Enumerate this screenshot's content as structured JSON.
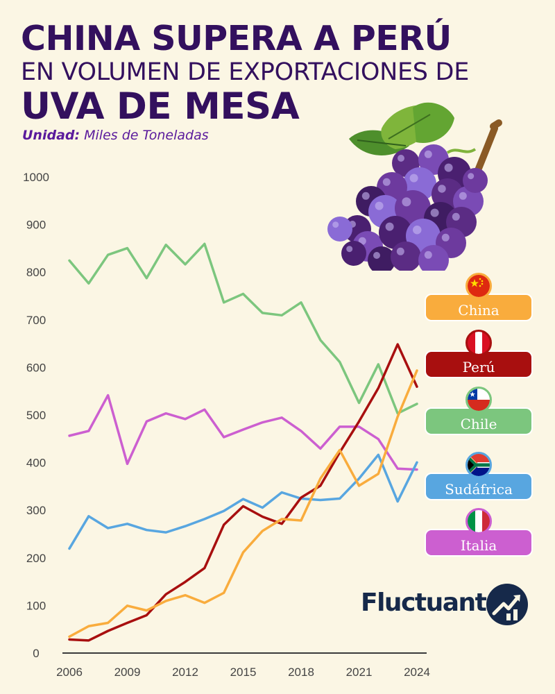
{
  "title": {
    "line1": "CHINA SUPERA A PERÚ",
    "line2": "EN VOLUMEN DE EXPORTACIONES DE",
    "line3": "UVA DE MESA"
  },
  "unit": {
    "label": "Unidad:",
    "value": " Miles de Toneladas"
  },
  "brand": {
    "name": "Fluctuante",
    "logo_icon": "chart-arrow-icon"
  },
  "decoration": {
    "icon": "grapes-icon"
  },
  "chart_data": {
    "type": "line",
    "ylim": [
      0,
      1000
    ],
    "yticks": [
      0,
      100,
      200,
      300,
      400,
      500,
      600,
      700,
      800,
      900,
      1000
    ],
    "xlim": [
      2006,
      2024
    ],
    "xticks": [
      2006,
      2009,
      2012,
      2015,
      2018,
      2021,
      2024
    ],
    "x": [
      2006,
      2007,
      2008,
      2009,
      2010,
      2011,
      2012,
      2013,
      2014,
      2015,
      2016,
      2017,
      2018,
      2019,
      2020,
      2021,
      2022,
      2023,
      2024
    ],
    "grid": false,
    "legend_position": "right",
    "series": [
      {
        "name": "China",
        "color": "#f9ac3d",
        "flag": "cn",
        "values": [
          33,
          55,
          62,
          98,
          88,
          108,
          120,
          104,
          125,
          210,
          255,
          280,
          277,
          365,
          425,
          350,
          375,
          495,
          592
        ]
      },
      {
        "name": "Perú",
        "color": "#a80f0f",
        "flag": "pe",
        "values": [
          27,
          25,
          45,
          62,
          78,
          122,
          148,
          177,
          268,
          307,
          285,
          270,
          325,
          350,
          420,
          485,
          555,
          647,
          558
        ]
      },
      {
        "name": "Chile",
        "color": "#7cc67e",
        "flag": "cl",
        "values": [
          823,
          775,
          835,
          849,
          786,
          856,
          815,
          858,
          735,
          753,
          713,
          708,
          735,
          656,
          610,
          524,
          605,
          502,
          522
        ]
      },
      {
        "name": "Sudáfrica",
        "color": "#58a6e0",
        "flag": "za",
        "values": [
          218,
          286,
          261,
          270,
          257,
          252,
          265,
          280,
          297,
          322,
          304,
          336,
          323,
          320,
          323,
          365,
          415,
          317,
          399
        ]
      },
      {
        "name": "Italia",
        "color": "#cc5fd0",
        "flag": "it",
        "values": [
          455,
          465,
          540,
          396,
          485,
          502,
          490,
          510,
          452,
          468,
          483,
          493,
          465,
          428,
          474,
          474,
          448,
          386,
          384
        ]
      }
    ]
  }
}
